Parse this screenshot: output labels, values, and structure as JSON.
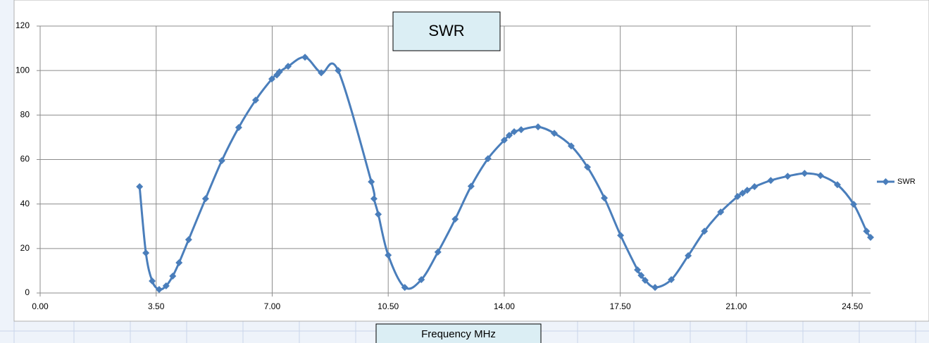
{
  "chart_data": {
    "type": "line",
    "title": "SWR",
    "x_label": "Frequency MHz",
    "x": [
      3.0,
      3.19,
      3.38,
      3.59,
      3.8,
      4.0,
      4.19,
      4.48,
      4.99,
      5.48,
      5.99,
      6.5,
      6.99,
      7.14,
      7.22,
      7.48,
      7.99,
      8.48,
      8.99,
      9.99,
      10.07,
      10.2,
      10.5,
      11.0,
      11.5,
      12.0,
      12.52,
      13.0,
      13.51,
      14.0,
      14.15,
      14.3,
      14.51,
      15.02,
      15.51,
      16.02,
      16.51,
      17.02,
      17.51,
      18.02,
      18.13,
      18.25,
      18.55,
      19.04,
      19.55,
      20.04,
      20.53,
      21.04,
      21.19,
      21.33,
      21.55,
      22.04,
      22.55,
      23.06,
      23.54,
      24.05,
      24.54,
      24.93,
      25.05
    ],
    "series": [
      {
        "name": "SWR",
        "color": "#4a7ebb",
        "values": [
          47.8,
          18,
          5.4,
          1.6,
          3.2,
          7.6,
          13.6,
          24,
          42.4,
          59.5,
          74.4,
          86.7,
          96.2,
          98,
          99.4,
          101.9,
          106,
          99,
          100,
          50,
          42.4,
          35.4,
          17,
          2.5,
          6,
          18.4,
          33.2,
          48,
          60.4,
          68.7,
          70.9,
          72.5,
          73.4,
          74.7,
          71.8,
          66.1,
          56.6,
          42.7,
          25.9,
          10.4,
          7.9,
          5.7,
          2.5,
          6,
          16.8,
          27.8,
          36.4,
          43.4,
          44.9,
          46.2,
          47.8,
          50.6,
          52.5,
          53.8,
          52.8,
          48.7,
          39.9,
          27.8,
          25
        ]
      }
    ],
    "xlim": [
      0,
      25.05
    ],
    "xticks": [
      {
        "value": 0,
        "label": "0.00"
      },
      {
        "value": 3.5,
        "label": "3.50"
      },
      {
        "value": 7,
        "label": "7.00"
      },
      {
        "value": 10.5,
        "label": "10.50"
      },
      {
        "value": 14,
        "label": "14.00"
      },
      {
        "value": 17.5,
        "label": "17.50"
      },
      {
        "value": 21,
        "label": "21.00"
      },
      {
        "value": 24.5,
        "label": "24.50"
      }
    ],
    "ylim": [
      0,
      120
    ],
    "yticks": [
      0,
      20,
      40,
      60,
      80,
      100,
      120
    ],
    "grid": true,
    "legend": "right",
    "smooth": true
  }
}
